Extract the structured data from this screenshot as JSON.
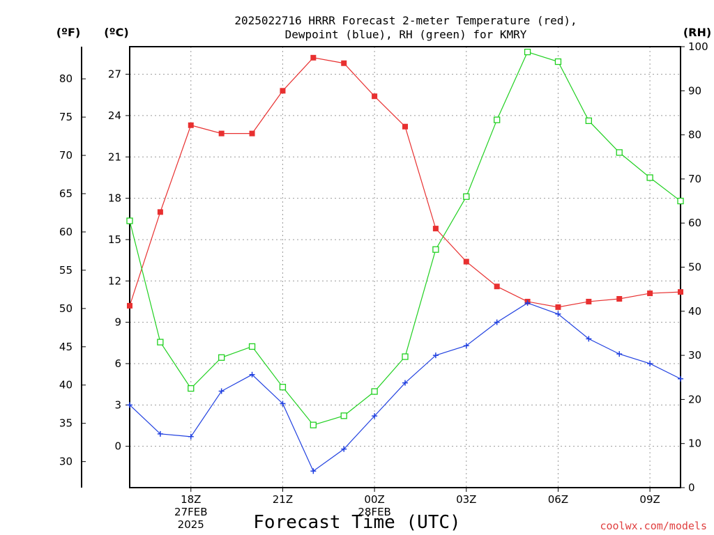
{
  "title_line1": "2025022716 HRRR Forecast 2-meter Temperature (red),",
  "title_line2": "Dewpoint (blue), RH (green) for KMRY",
  "unit_f": "(ºF)",
  "unit_c": "(ºC)",
  "unit_rh": "(RH)",
  "xlabel": "Forecast Time (UTC)",
  "credit": "coolwx.com/models",
  "chart_data": {
    "type": "line",
    "title": "2025022716 HRRR Forecast 2-meter Temperature (red), Dewpoint (blue), RH (green) for KMRY",
    "xlabel": "Forecast Time (UTC)",
    "x": [
      "16Z",
      "17Z",
      "18Z",
      "19Z",
      "20Z",
      "21Z",
      "22Z",
      "23Z",
      "00Z",
      "01Z",
      "02Z",
      "03Z",
      "04Z",
      "05Z",
      "06Z",
      "07Z",
      "08Z",
      "09Z",
      "10Z"
    ],
    "x_ticks": [
      {
        "index": 2,
        "lines": [
          "18Z",
          "27FEB",
          "2025"
        ]
      },
      {
        "index": 5,
        "lines": [
          "21Z"
        ]
      },
      {
        "index": 8,
        "lines": [
          "00Z",
          "28FEB"
        ]
      },
      {
        "index": 11,
        "lines": [
          "03Z"
        ]
      },
      {
        "index": 14,
        "lines": [
          "06Z"
        ]
      },
      {
        "index": 17,
        "lines": [
          "09Z"
        ]
      }
    ],
    "left_axis": {
      "unit": "°C",
      "ylim": [
        -3,
        29
      ],
      "ticks": [
        0,
        3,
        6,
        9,
        12,
        15,
        18,
        21,
        24,
        27
      ]
    },
    "fahrenheit_axis": {
      "unit": "°F",
      "ticks": [
        30,
        35,
        40,
        45,
        50,
        55,
        60,
        65,
        70,
        75,
        80
      ]
    },
    "right_axis": {
      "unit": "RH",
      "ylim": [
        0,
        100
      ],
      "ticks": [
        0,
        10,
        20,
        30,
        40,
        50,
        60,
        70,
        80,
        90,
        100
      ]
    },
    "grid": true,
    "series": [
      {
        "name": "Temperature",
        "axis": "left",
        "color": "#e83030",
        "marker": "filled-square",
        "values": [
          10.2,
          17.0,
          23.3,
          22.7,
          22.7,
          25.8,
          28.2,
          27.8,
          25.4,
          23.2,
          15.8,
          13.4,
          11.6,
          10.5,
          10.1,
          10.5,
          10.7,
          11.1,
          11.2
        ]
      },
      {
        "name": "Dewpoint",
        "axis": "left",
        "color": "#2040e0",
        "marker": "plus",
        "values": [
          3.0,
          0.9,
          0.7,
          4.0,
          5.2,
          3.1,
          -1.8,
          -0.2,
          2.2,
          4.6,
          6.6,
          7.3,
          9.0,
          10.4,
          9.6,
          7.8,
          6.7,
          6.0,
          4.9
        ]
      },
      {
        "name": "RH",
        "axis": "right",
        "color": "#20d020",
        "marker": "open-square",
        "values": [
          60.5,
          33.0,
          22.5,
          29.5,
          32.0,
          22.8,
          14.2,
          16.3,
          21.8,
          29.7,
          54.0,
          66.0,
          83.4,
          98.8,
          96.6,
          83.2,
          76.0,
          70.3,
          65.0
        ]
      }
    ]
  }
}
